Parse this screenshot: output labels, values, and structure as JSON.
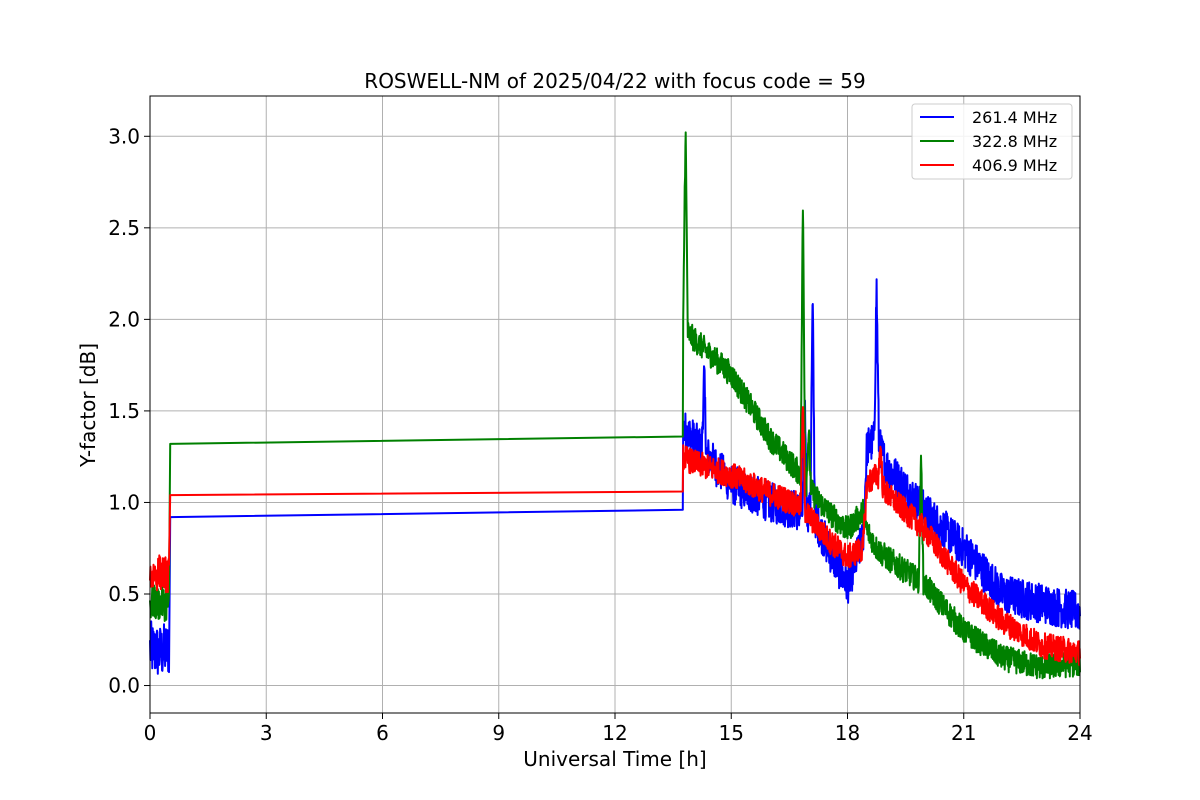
{
  "chart_data": {
    "type": "line",
    "title": "ROSWELL-NM of 2025/04/22 with focus code = 59",
    "xlabel": "Universal Time [h]",
    "ylabel": "Y-factor [dB]",
    "xlim": [
      0,
      24
    ],
    "ylim": [
      -0.15,
      3.22
    ],
    "xticks": [
      0,
      3,
      6,
      9,
      12,
      15,
      18,
      21,
      24
    ],
    "xtick_labels": [
      "0",
      "3",
      "6",
      "9",
      "12",
      "15",
      "18",
      "21",
      "24"
    ],
    "yticks": [
      0.0,
      0.5,
      1.0,
      1.5,
      2.0,
      2.5,
      3.0
    ],
    "ytick_labels": [
      "0.0",
      "0.5",
      "1.0",
      "1.5",
      "2.0",
      "2.5",
      "3.0"
    ],
    "grid": true,
    "legend_position": "top-right",
    "series": [
      {
        "name": "261.4 MHz",
        "color": "#0000ff",
        "x": [
          0.0,
          0.25,
          0.5,
          0.52,
          13.75,
          13.76,
          14.0,
          15.0,
          16.0,
          16.8,
          17.1,
          17.5,
          18.0,
          18.4,
          18.5,
          18.75,
          19.0,
          20.0,
          21.0,
          22.0,
          23.0,
          24.0
        ],
        "y": [
          0.2,
          0.18,
          0.2,
          0.92,
          0.96,
          1.4,
          1.35,
          1.1,
          1.0,
          0.95,
          0.95,
          0.75,
          0.55,
          0.8,
          1.3,
          1.35,
          1.2,
          0.95,
          0.75,
          0.5,
          0.45,
          0.4
        ],
        "spikes": [
          {
            "x": 17.1,
            "y": 2.12
          },
          {
            "x": 18.75,
            "y": 2.2
          },
          {
            "x": 14.3,
            "y": 1.7
          },
          {
            "x": 16.9,
            "y": 1.55
          }
        ]
      },
      {
        "name": "322.8 MHz",
        "color": "#008000",
        "x": [
          0.0,
          0.25,
          0.5,
          0.52,
          13.75,
          13.76,
          14.0,
          15.0,
          16.0,
          16.8,
          17.1,
          17.5,
          18.0,
          18.4,
          18.5,
          18.75,
          19.0,
          20.0,
          21.0,
          22.0,
          23.0,
          24.0
        ],
        "y": [
          0.45,
          0.45,
          0.45,
          1.32,
          1.36,
          1.95,
          1.9,
          1.7,
          1.35,
          1.15,
          1.05,
          0.95,
          0.85,
          0.95,
          0.85,
          0.75,
          0.7,
          0.55,
          0.3,
          0.15,
          0.1,
          0.12
        ],
        "spikes": [
          {
            "x": 13.82,
            "y": 3.07
          },
          {
            "x": 16.85,
            "y": 2.65
          },
          {
            "x": 17.0,
            "y": 1.4
          },
          {
            "x": 19.9,
            "y": 1.25
          }
        ]
      },
      {
        "name": "406.9 MHz",
        "color": "#ff0000",
        "x": [
          0.0,
          0.25,
          0.5,
          0.52,
          13.75,
          13.76,
          14.0,
          15.0,
          16.0,
          16.8,
          17.1,
          17.5,
          18.0,
          18.4,
          18.5,
          18.75,
          19.0,
          20.0,
          21.0,
          22.0,
          23.0,
          24.0
        ],
        "y": [
          0.6,
          0.62,
          0.6,
          1.04,
          1.06,
          1.25,
          1.22,
          1.15,
          1.05,
          0.98,
          0.9,
          0.8,
          0.7,
          0.75,
          1.1,
          1.15,
          1.05,
          0.85,
          0.55,
          0.35,
          0.22,
          0.18
        ],
        "spikes": [
          {
            "x": 16.85,
            "y": 1.52
          },
          {
            "x": 18.85,
            "y": 1.3
          },
          {
            "x": 0.1,
            "y": 0.8
          }
        ]
      }
    ]
  }
}
